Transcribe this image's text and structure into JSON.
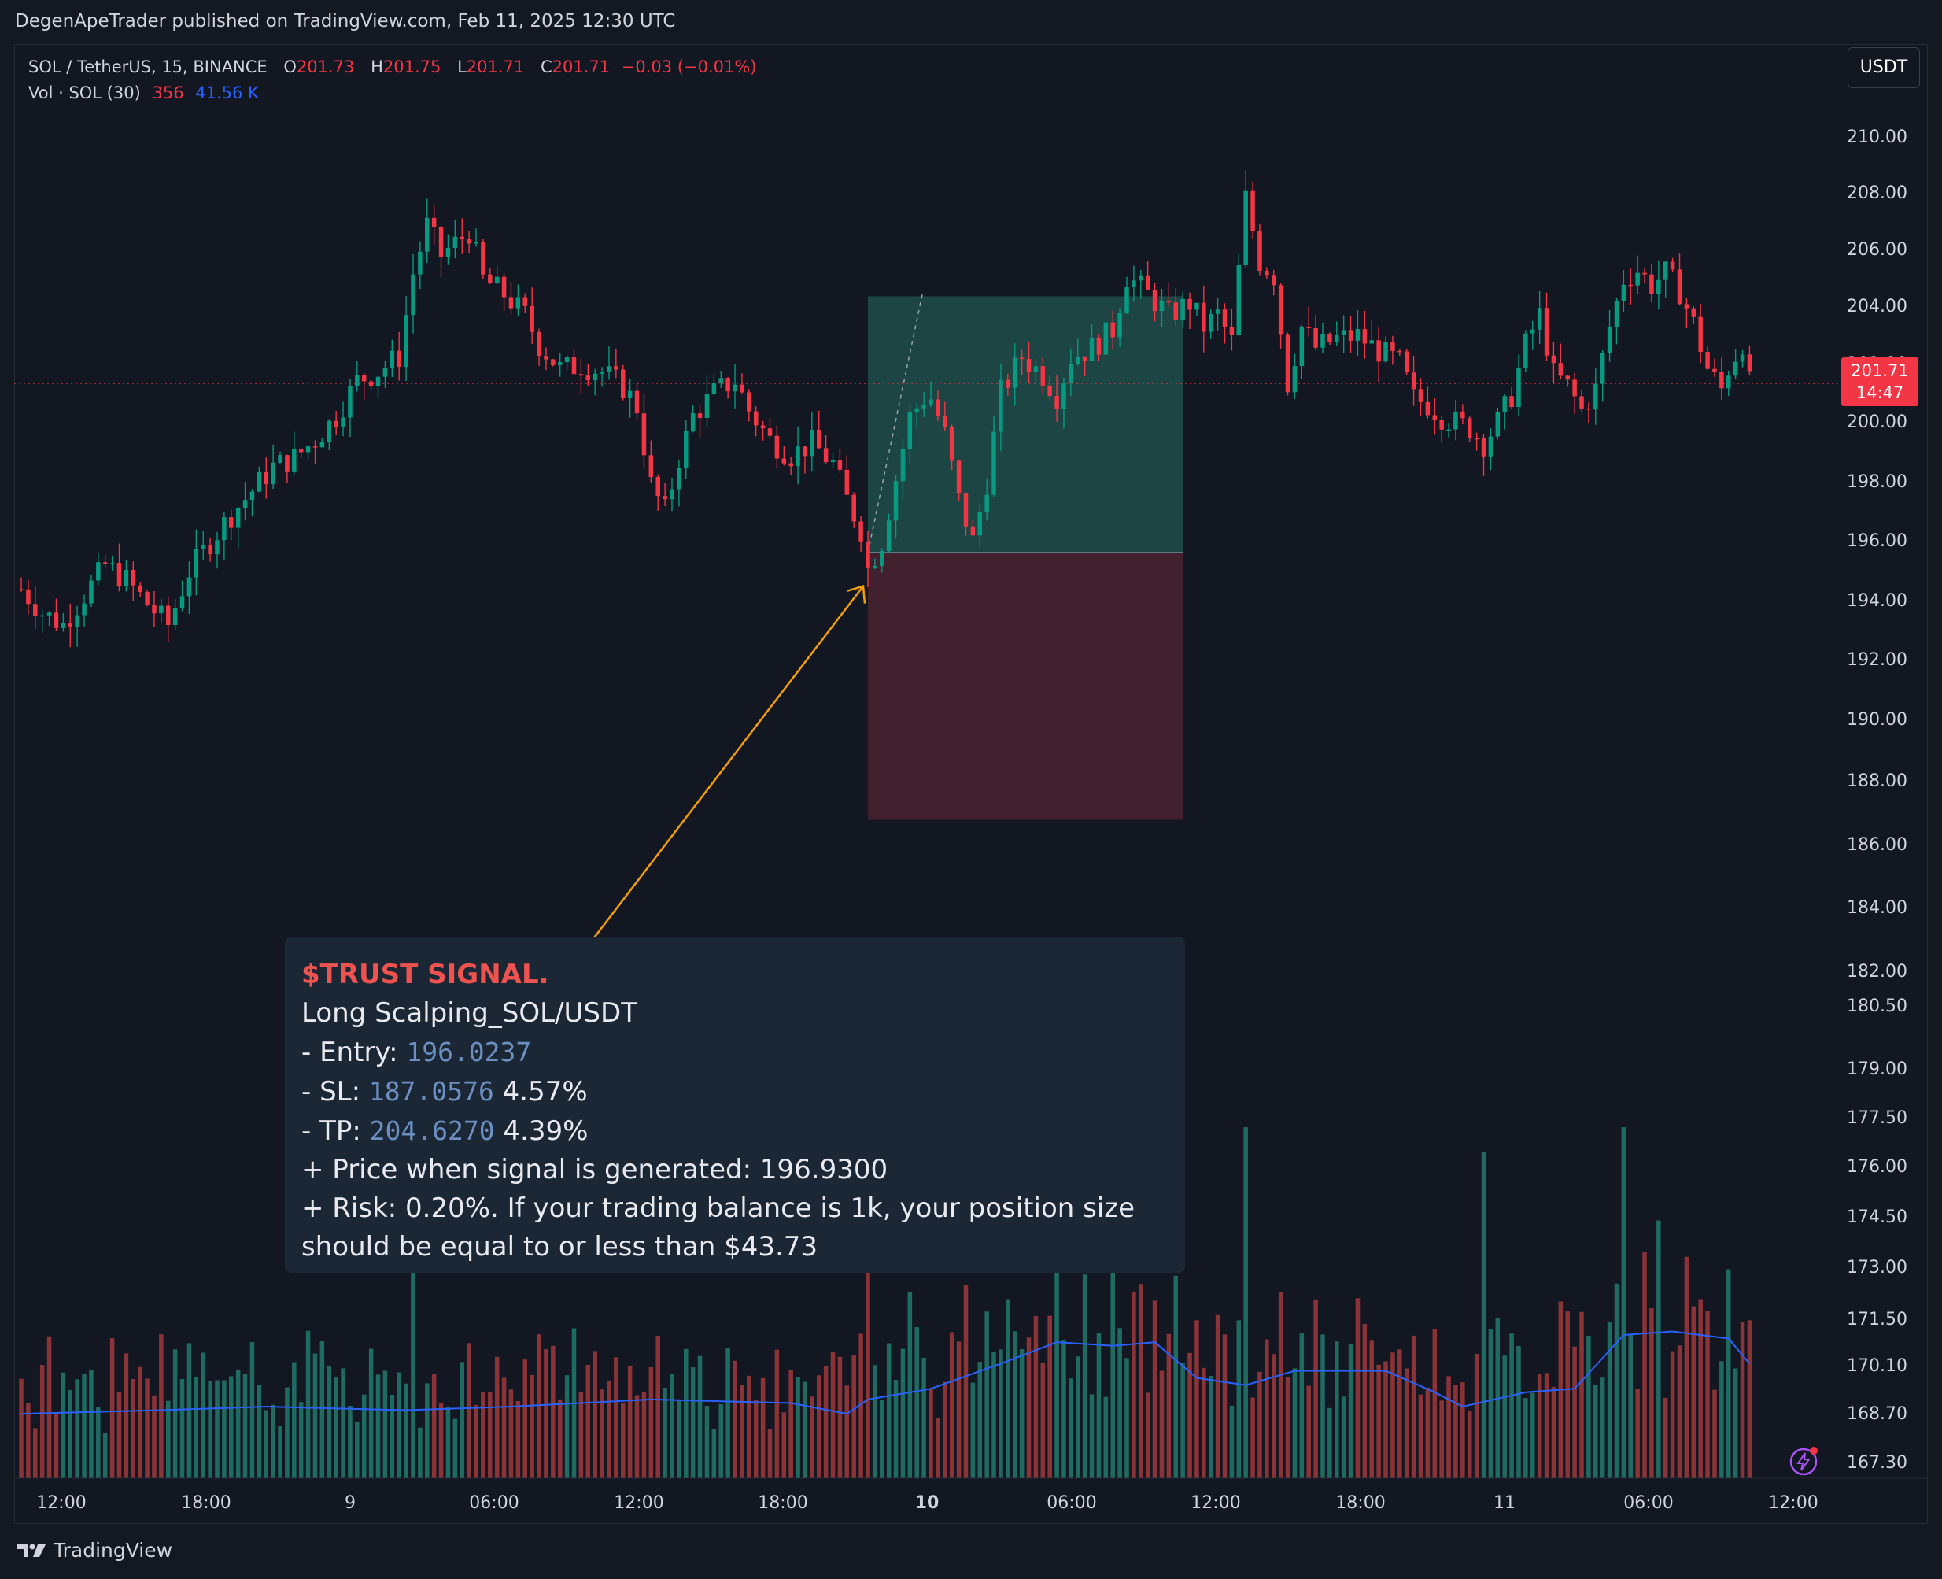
{
  "header": {
    "published_line": "DegenApeTrader published on TradingView.com, Feb 11, 2025 12:30 UTC"
  },
  "legend": {
    "symbol": "SOL / TetherUS, 15, BINANCE",
    "o_label": "O",
    "o_value": "201.73",
    "h_label": "H",
    "h_value": "201.75",
    "l_label": "L",
    "l_value": "201.71",
    "c_label": "C",
    "c_value": "201.71",
    "change": "−0.03 (−0.01%)",
    "volume_label": "Vol · SOL (30)",
    "volume_value": "356",
    "volume_ma": "41.56 K"
  },
  "currency_button": "USDT",
  "last_price": {
    "price": "201.71",
    "countdown": "14:47"
  },
  "colors": {
    "up": "#089981",
    "down": "#f23645",
    "vol_up": "#1f6b62",
    "vol_down": "#8b3438",
    "vol_ma": "#2962ff",
    "arrow": "#f59e0b",
    "tp_zone": "#1e4a47",
    "sl_zone": "#442230",
    "price_line": "#f23645",
    "background": "#131722"
  },
  "signal": {
    "title": "$TRUST SIGNAL.",
    "line1": "Long Scalping_SOL/USDT",
    "entry_label": "- Entry: ",
    "entry_value": "196.0237",
    "sl_label": "- SL: ",
    "sl_value": "187.0576",
    "sl_pct": " 4.57%",
    "tp_label": "- TP: ",
    "tp_value": "204.6270",
    "tp_pct": " 4.39%",
    "price_line": "+ Price when signal is generated: 196.9300",
    "risk_line1": "+ Risk: 0.20%. If your trading balance is 1k, your position size",
    "risk_line2": "should be equal to or less than $43.73"
  },
  "brand": "TradingView",
  "chart_data": {
    "type": "candlestick",
    "symbol": "SOL / TetherUS",
    "interval": "15",
    "y_axis_ticks": [
      "210.00",
      "208.00",
      "206.00",
      "204.00",
      "202.00",
      "200.00",
      "198.00",
      "196.00",
      "194.00",
      "192.00",
      "190.00",
      "188.00",
      "186.00",
      "184.00",
      "182.00",
      "180.50",
      "179.00",
      "177.50",
      "176.00",
      "174.50",
      "173.00",
      "171.50",
      "170.10",
      "168.70",
      "167.30"
    ],
    "x_axis_ticks": [
      "12:00",
      "18:00",
      "9",
      "06:00",
      "12:00",
      "18:00",
      "10",
      "06:00",
      "12:00",
      "18:00",
      "11",
      "06:00",
      "12:00"
    ],
    "bold_x_ticks": [
      "10"
    ],
    "close_path_points": [
      [
        0,
        194.8
      ],
      [
        3,
        194.0
      ],
      [
        6,
        193.6
      ],
      [
        9,
        194.6
      ],
      [
        12,
        195.6
      ],
      [
        15,
        195.1
      ],
      [
        18,
        194.3
      ],
      [
        21,
        193.6
      ],
      [
        24,
        195.4
      ],
      [
        27,
        196.4
      ],
      [
        30,
        197.3
      ],
      [
        33,
        198.1
      ],
      [
        36,
        198.9
      ],
      [
        39,
        199.2
      ],
      [
        42,
        199.8
      ],
      [
        45,
        200.6
      ],
      [
        48,
        201.8
      ],
      [
        51,
        202.1
      ],
      [
        54,
        202.6
      ],
      [
        56,
        205.4
      ],
      [
        58,
        207.0
      ],
      [
        60,
        206.0
      ],
      [
        62,
        206.4
      ],
      [
        64,
        206.8
      ],
      [
        66,
        205.2
      ],
      [
        69,
        204.7
      ],
      [
        72,
        204.0
      ],
      [
        74,
        203.0
      ],
      [
        77,
        202.2
      ],
      [
        80,
        202.3
      ],
      [
        83,
        202.1
      ],
      [
        86,
        201.6
      ],
      [
        88,
        200.9
      ],
      [
        90,
        198.3
      ],
      [
        92,
        197.4
      ],
      [
        94,
        199.2
      ],
      [
        96,
        200.6
      ],
      [
        99,
        201.4
      ],
      [
        102,
        201.8
      ],
      [
        104,
        200.8
      ],
      [
        107,
        199.8
      ],
      [
        110,
        199.3
      ],
      [
        113,
        199.7
      ],
      [
        116,
        199.0
      ],
      [
        118,
        197.8
      ],
      [
        120,
        196.8
      ],
      [
        121,
        195.5
      ],
      [
        123,
        196.4
      ],
      [
        125,
        198.5
      ],
      [
        127,
        200.6
      ],
      [
        129,
        201.2
      ],
      [
        130,
        201.2
      ],
      [
        132,
        200.0
      ],
      [
        134,
        197.8
      ],
      [
        136,
        196.4
      ],
      [
        138,
        198.4
      ],
      [
        140,
        201.4
      ],
      [
        143,
        202.6
      ],
      [
        146,
        202.0
      ],
      [
        148,
        201.3
      ],
      [
        150,
        202.6
      ],
      [
        153,
        202.9
      ],
      [
        156,
        203.5
      ],
      [
        158,
        205.3
      ],
      [
        161,
        204.7
      ],
      [
        164,
        204.0
      ],
      [
        167,
        204.4
      ],
      [
        169,
        203.6
      ],
      [
        171,
        204.0
      ],
      [
        173,
        203.1
      ],
      [
        175,
        207.9
      ],
      [
        177,
        205.8
      ],
      [
        179,
        205.3
      ],
      [
        181,
        201.7
      ],
      [
        183,
        203.6
      ],
      [
        185,
        202.9
      ],
      [
        188,
        203.2
      ],
      [
        191,
        203.3
      ],
      [
        194,
        202.8
      ],
      [
        197,
        202.4
      ],
      [
        199,
        201.2
      ],
      [
        201,
        201.0
      ],
      [
        203,
        200.6
      ],
      [
        205,
        200.4
      ],
      [
        207,
        200.2
      ],
      [
        209,
        199.7
      ],
      [
        211,
        200.4
      ],
      [
        213,
        201.3
      ],
      [
        215,
        203.0
      ],
      [
        217,
        204.0
      ],
      [
        219,
        202.0
      ],
      [
        221,
        201.6
      ],
      [
        223,
        200.8
      ],
      [
        225,
        201.5
      ],
      [
        227,
        203.6
      ],
      [
        229,
        205.2
      ],
      [
        231,
        205.5
      ],
      [
        233,
        205.0
      ],
      [
        235,
        205.4
      ],
      [
        237,
        204.8
      ],
      [
        239,
        203.7
      ],
      [
        241,
        202.2
      ],
      [
        243,
        201.5
      ],
      [
        244,
        202.2
      ],
      [
        246,
        203.1
      ],
      [
        247,
        201.7
      ]
    ],
    "x_range": [
      0,
      251
    ],
    "volume": {
      "label": "Vol · SOL (30)",
      "ma_points": [
        [
          0,
          0.18
        ],
        [
          20,
          0.19
        ],
        [
          35,
          0.2
        ],
        [
          55,
          0.19
        ],
        [
          70,
          0.2
        ],
        [
          90,
          0.22
        ],
        [
          110,
          0.21
        ],
        [
          118,
          0.18
        ],
        [
          121,
          0.22
        ],
        [
          130,
          0.25
        ],
        [
          140,
          0.32
        ],
        [
          148,
          0.38
        ],
        [
          156,
          0.37
        ],
        [
          162,
          0.38
        ],
        [
          168,
          0.28
        ],
        [
          175,
          0.26
        ],
        [
          182,
          0.3
        ],
        [
          195,
          0.3
        ],
        [
          202,
          0.24
        ],
        [
          206,
          0.2
        ],
        [
          215,
          0.24
        ],
        [
          222,
          0.25
        ],
        [
          229,
          0.4
        ],
        [
          236,
          0.41
        ],
        [
          244,
          0.39
        ],
        [
          247,
          0.32
        ]
      ],
      "spikes": [
        [
          56,
          0.58
        ],
        [
          90,
          0.31
        ],
        [
          121,
          1.0
        ],
        [
          127,
          0.52
        ],
        [
          135,
          0.54
        ],
        [
          141,
          0.5
        ],
        [
          175,
          0.98
        ],
        [
          180,
          0.52
        ],
        [
          209,
          0.91
        ],
        [
          229,
          0.98
        ],
        [
          234,
          0.72
        ],
        [
          240,
          0.5
        ]
      ]
    },
    "position_tool": {
      "entry": 196.0237,
      "stop_loss": 187.0576,
      "take_profit": 204.627,
      "start_index": 121,
      "end_index": 166
    },
    "last_price": 201.71,
    "grid": false
  }
}
